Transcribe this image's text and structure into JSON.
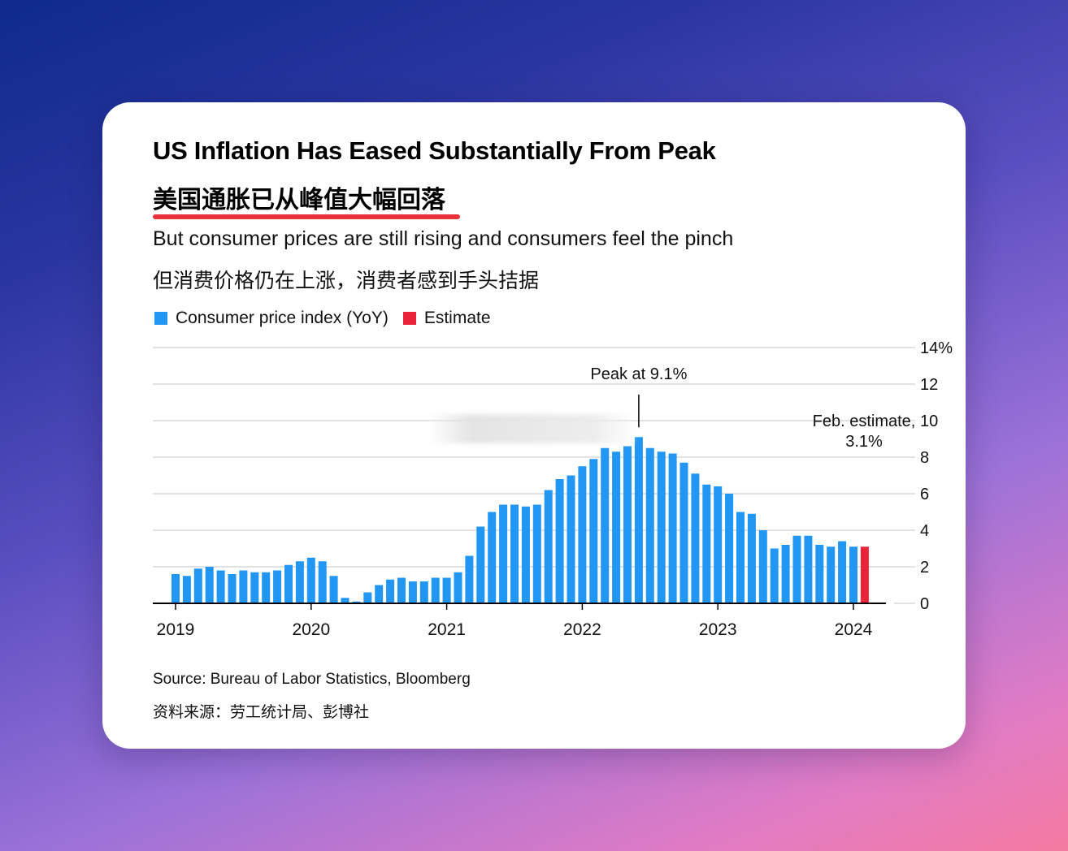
{
  "card": {
    "title_en": "US Inflation Has Eased Substantially From Peak",
    "title_zh": "美国通胀已从峰值大幅回落",
    "subtitle_en": "But consumer prices are still rising and consumers feel the pinch",
    "subtitle_zh": "但消费价格仍在上涨，消费者感到手头拮据",
    "source_en": "Source: Bureau of Labor Statistics, Bloomberg",
    "source_zh": "资料来源：劳工统计局、彭博社"
  },
  "colors": {
    "cpi": "#2196f3",
    "estimate": "#e8233a",
    "accent_underline": "#e8323c",
    "grid": "#d9d9d9"
  },
  "chart_data": {
    "type": "bar",
    "ylim": [
      0,
      14
    ],
    "y_ticks": [
      "14%",
      "12",
      "10",
      "8",
      "6",
      "4",
      "2",
      "0"
    ],
    "x_ticks": [
      "2019",
      "2020",
      "2021",
      "2022",
      "2023",
      "2024"
    ],
    "grid": true,
    "legend_position": "top-left",
    "legend": [
      "Consumer price index (YoY)",
      "Estimate"
    ],
    "x": [
      "2019-01",
      "2019-02",
      "2019-03",
      "2019-04",
      "2019-05",
      "2019-06",
      "2019-07",
      "2019-08",
      "2019-09",
      "2019-10",
      "2019-11",
      "2019-12",
      "2020-01",
      "2020-02",
      "2020-03",
      "2020-04",
      "2020-05",
      "2020-06",
      "2020-07",
      "2020-08",
      "2020-09",
      "2020-10",
      "2020-11",
      "2020-12",
      "2021-01",
      "2021-02",
      "2021-03",
      "2021-04",
      "2021-05",
      "2021-06",
      "2021-07",
      "2021-08",
      "2021-09",
      "2021-10",
      "2021-11",
      "2021-12",
      "2022-01",
      "2022-02",
      "2022-03",
      "2022-04",
      "2022-05",
      "2022-06",
      "2022-07",
      "2022-08",
      "2022-09",
      "2022-10",
      "2022-11",
      "2022-12",
      "2023-01",
      "2023-02",
      "2023-03",
      "2023-04",
      "2023-05",
      "2023-06",
      "2023-07",
      "2023-08",
      "2023-09",
      "2023-10",
      "2023-11",
      "2023-12",
      "2024-01",
      "2024-02"
    ],
    "series": [
      {
        "name": "Consumer price index (YoY)",
        "values": [
          1.6,
          1.5,
          1.9,
          2.0,
          1.8,
          1.6,
          1.8,
          1.7,
          1.7,
          1.8,
          2.1,
          2.3,
          2.5,
          2.3,
          1.5,
          0.3,
          0.1,
          0.6,
          1.0,
          1.3,
          1.4,
          1.2,
          1.2,
          1.4,
          1.4,
          1.7,
          2.6,
          4.2,
          5.0,
          5.4,
          5.4,
          5.3,
          5.4,
          6.2,
          6.8,
          7.0,
          7.5,
          7.9,
          8.5,
          8.3,
          8.6,
          9.1,
          8.5,
          8.3,
          8.2,
          7.7,
          7.1,
          6.5,
          6.4,
          6.0,
          5.0,
          4.9,
          4.0,
          3.0,
          3.2,
          3.7,
          3.7,
          3.2,
          3.1,
          3.4,
          3.1,
          null
        ]
      },
      {
        "name": "Estimate",
        "values": [
          null,
          null,
          null,
          null,
          null,
          null,
          null,
          null,
          null,
          null,
          null,
          null,
          null,
          null,
          null,
          null,
          null,
          null,
          null,
          null,
          null,
          null,
          null,
          null,
          null,
          null,
          null,
          null,
          null,
          null,
          null,
          null,
          null,
          null,
          null,
          null,
          null,
          null,
          null,
          null,
          null,
          null,
          null,
          null,
          null,
          null,
          null,
          null,
          null,
          null,
          null,
          null,
          null,
          null,
          null,
          null,
          null,
          null,
          null,
          null,
          null,
          3.1
        ]
      }
    ],
    "annotations": [
      {
        "text": "Peak at 9.1%",
        "x": "2022-06",
        "y": 9.1
      },
      {
        "text": "Feb. estimate,",
        "text2": "3.1%",
        "x": "2024-02",
        "y": 3.1
      }
    ]
  }
}
